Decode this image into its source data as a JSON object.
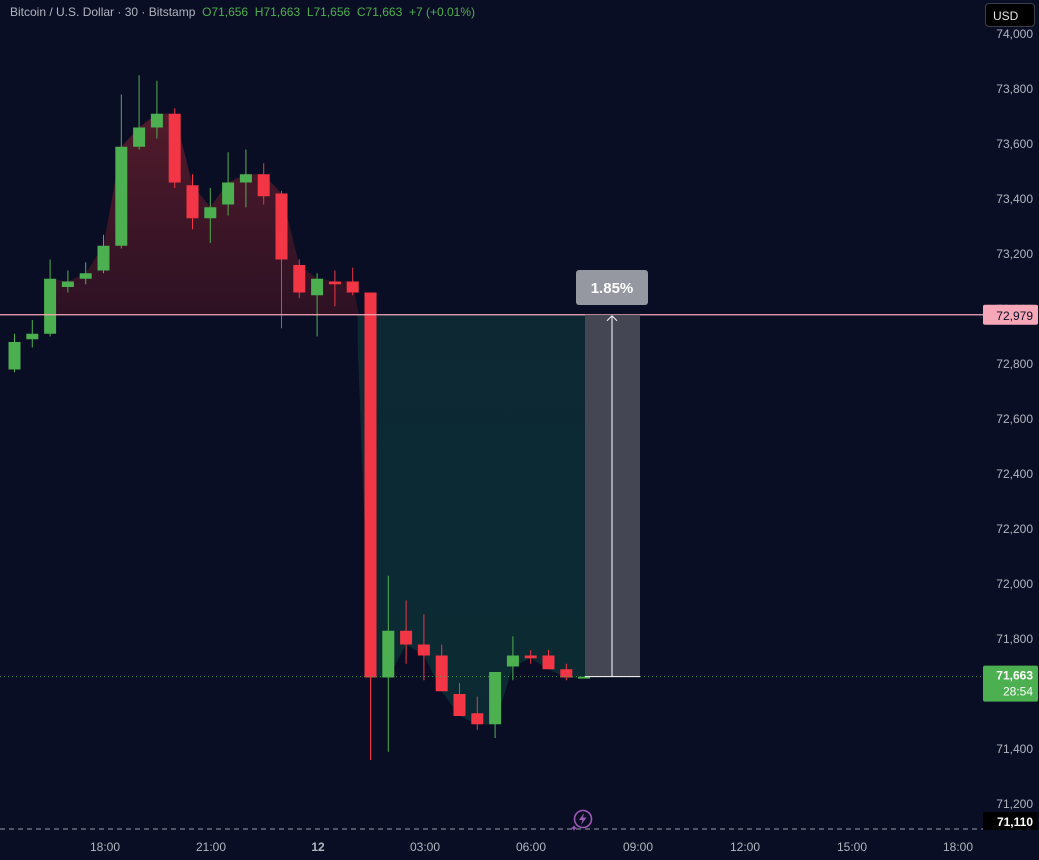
{
  "header": {
    "symbol": "Bitcoin / U.S. Dollar · 30 · Bitstamp",
    "open": "O71,656",
    "high": "H71,663",
    "low": "L71,656",
    "close": "C71,663",
    "change": "+7 (+0.01%)"
  },
  "currency_button": "USD",
  "colors": {
    "background": "#0a0e24",
    "bull": "#4caf50",
    "bear": "#f23645",
    "ref_line": "#f7a8b8",
    "measure_box": "#4a4c5a",
    "measure_label_bg": "#9598a1"
  },
  "labels": {
    "measure": "1.85%",
    "ref_price": "72,979",
    "last_price": "71,663",
    "countdown": "28:54",
    "low_price": "71,110"
  },
  "chart_data": {
    "type": "candlestick",
    "interval": "30",
    "ylim": [
      71110,
      74050
    ],
    "y_ticks": [
      71200,
      71400,
      71600,
      71800,
      72000,
      72200,
      72400,
      72600,
      72800,
      73000,
      73200,
      73400,
      73600,
      73800,
      74000
    ],
    "y_tick_labels": [
      "71,200",
      "71,400",
      "71,600",
      "71,800",
      "72,000",
      "72,200",
      "72,400",
      "72,600",
      "72,800",
      "73,000",
      "73,200",
      "73,400",
      "73,600",
      "73,800",
      "74,000"
    ],
    "x_ticks": [
      "18:00",
      "21:00",
      "12",
      "03:00",
      "06:00",
      "09:00",
      "12:00",
      "15:00",
      "18:00"
    ],
    "reference_price": 72979,
    "last_price": 71663,
    "low_marker": 71110,
    "measure_pct": "1.85%",
    "candles": [
      {
        "o": 72780,
        "h": 72910,
        "l": 72770,
        "c": 72880
      },
      {
        "o": 72890,
        "h": 72960,
        "l": 72860,
        "c": 72910
      },
      {
        "o": 72910,
        "h": 73180,
        "l": 72900,
        "c": 73110
      },
      {
        "o": 73080,
        "h": 73140,
        "l": 73060,
        "c": 73100
      },
      {
        "o": 73110,
        "h": 73170,
        "l": 73090,
        "c": 73130
      },
      {
        "o": 73140,
        "h": 73270,
        "l": 73130,
        "c": 73230
      },
      {
        "o": 73230,
        "h": 73780,
        "l": 73220,
        "c": 73590
      },
      {
        "o": 73590,
        "h": 73850,
        "l": 73580,
        "c": 73660
      },
      {
        "o": 73660,
        "h": 73830,
        "l": 73620,
        "c": 73710
      },
      {
        "o": 73710,
        "h": 73730,
        "l": 73440,
        "c": 73460
      },
      {
        "o": 73450,
        "h": 73490,
        "l": 73290,
        "c": 73330
      },
      {
        "o": 73330,
        "h": 73440,
        "l": 73240,
        "c": 73370
      },
      {
        "o": 73380,
        "h": 73570,
        "l": 73340,
        "c": 73460
      },
      {
        "o": 73460,
        "h": 73580,
        "l": 73370,
        "c": 73490
      },
      {
        "o": 73490,
        "h": 73530,
        "l": 73380,
        "c": 73410
      },
      {
        "o": 73420,
        "h": 73430,
        "l": 72930,
        "c": 73180
      },
      {
        "o": 73160,
        "h": 73180,
        "l": 73040,
        "c": 73060
      },
      {
        "o": 73050,
        "h": 73130,
        "l": 72900,
        "c": 73110
      },
      {
        "o": 73100,
        "h": 73140,
        "l": 73010,
        "c": 73090
      },
      {
        "o": 73100,
        "h": 73150,
        "l": 73050,
        "c": 73060
      },
      {
        "o": 73060,
        "h": 73060,
        "l": 71360,
        "c": 71660
      },
      {
        "o": 71660,
        "h": 72030,
        "l": 71390,
        "c": 71830
      },
      {
        "o": 71830,
        "h": 71940,
        "l": 71710,
        "c": 71780
      },
      {
        "o": 71780,
        "h": 71890,
        "l": 71650,
        "c": 71740
      },
      {
        "o": 71740,
        "h": 71780,
        "l": 71610,
        "c": 71610
      },
      {
        "o": 71600,
        "h": 71640,
        "l": 71520,
        "c": 71520
      },
      {
        "o": 71530,
        "h": 71590,
        "l": 71470,
        "c": 71490
      },
      {
        "o": 71490,
        "h": 71680,
        "l": 71440,
        "c": 71680
      },
      {
        "o": 71700,
        "h": 71810,
        "l": 71650,
        "c": 71740
      },
      {
        "o": 71740,
        "h": 71760,
        "l": 71710,
        "c": 71730
      },
      {
        "o": 71740,
        "h": 71760,
        "l": 71690,
        "c": 71690
      },
      {
        "o": 71690,
        "h": 71710,
        "l": 71650,
        "c": 71660
      },
      {
        "o": 71656,
        "h": 71663,
        "l": 71656,
        "c": 71663
      }
    ]
  }
}
